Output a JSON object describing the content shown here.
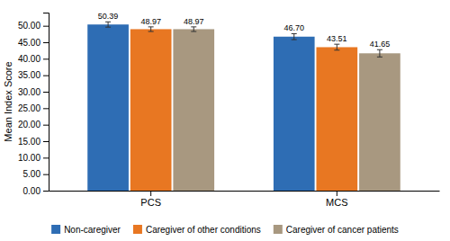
{
  "chart_data": {
    "type": "bar",
    "categories": [
      "PCS",
      "MCS"
    ],
    "series": [
      {
        "name": "Non-caregiver",
        "color": "#2e6db4",
        "values": [
          50.39,
          46.7
        ],
        "value_labels": [
          "50.39",
          "46.70"
        ],
        "errors": [
          0.8,
          0.9
        ]
      },
      {
        "name": "Caregiver of other conditions",
        "color": "#e87722",
        "values": [
          48.97,
          43.51
        ],
        "value_labels": [
          "48.97",
          "43.51"
        ],
        "errors": [
          0.7,
          0.9
        ]
      },
      {
        "name": "Caregiver of cancer patients",
        "color": "#a89880",
        "values": [
          48.97,
          41.65
        ],
        "value_labels": [
          "48.97",
          "41.65"
        ],
        "errors": [
          0.7,
          1.1
        ]
      }
    ],
    "ylabel": "Mean Index Score",
    "ylim": [
      0,
      54
    ],
    "yticks": [
      {
        "value": 0,
        "label": "0.00"
      },
      {
        "value": 5,
        "label": "5.00"
      },
      {
        "value": 10,
        "label": "10.00"
      },
      {
        "value": 15,
        "label": "15.00"
      },
      {
        "value": 20,
        "label": "20.00"
      },
      {
        "value": 25,
        "label": "25.00"
      },
      {
        "value": 30,
        "label": "30.00"
      },
      {
        "value": 35,
        "label": "35.00"
      },
      {
        "value": 40,
        "label": "40.00"
      },
      {
        "value": 45,
        "label": "45.00"
      },
      {
        "value": 50,
        "label": "50.00"
      }
    ],
    "data_labels": true,
    "legend": "bottom",
    "grid": false
  }
}
